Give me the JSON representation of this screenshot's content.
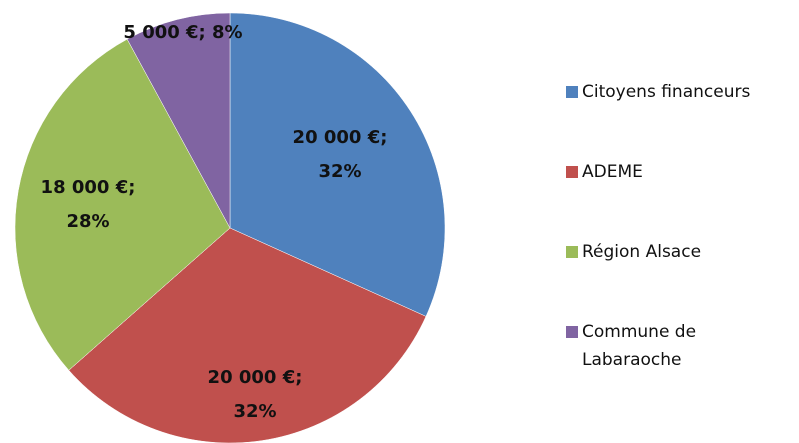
{
  "chart_data": {
    "type": "pie",
    "categories": [
      "Citoyens financeurs",
      "ADEME",
      "Région Alsace",
      "Commune de Labaraoche"
    ],
    "values": [
      20000,
      20000,
      18000,
      5000
    ],
    "value_labels": [
      "20 000 €; 32%",
      "20 000 €; 32%",
      "18 000 €; 28%",
      "5 000 €; 8%"
    ],
    "colors": [
      "#4f81bd",
      "#c0504d",
      "#9bbb59",
      "#8064a2"
    ],
    "legend": "right"
  }
}
